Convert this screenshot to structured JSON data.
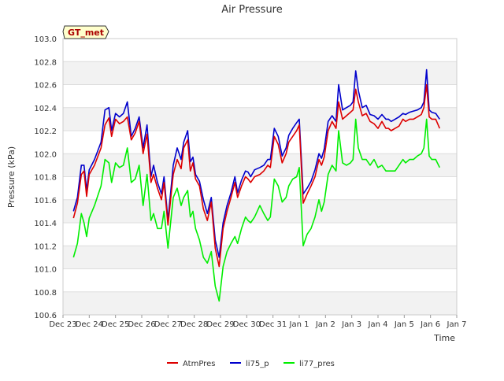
{
  "chart_data": {
    "type": "line",
    "title": "Air Pressure",
    "xlabel": "Time",
    "ylabel": "Pressure (kPa)",
    "site_badge": "GT_met",
    "ylim": [
      100.6,
      103.0
    ],
    "xlim": [
      0,
      15
    ],
    "y_ticks": [
      100.6,
      100.8,
      101.0,
      101.2,
      101.4,
      101.6,
      101.8,
      102.0,
      102.2,
      102.4,
      102.6,
      102.8,
      103.0
    ],
    "y_tick_labels": [
      "100.6",
      "100.8",
      "101.0",
      "101.2",
      "101.4",
      "101.6",
      "101.8",
      "102.0",
      "102.2",
      "102.4",
      "102.6",
      "102.8",
      "103.0"
    ],
    "x_ticks": [
      0,
      1,
      2,
      3,
      4,
      5,
      6,
      7,
      8,
      9,
      10,
      11,
      12,
      13,
      14,
      15
    ],
    "x_tick_labels": [
      "Dec 23",
      "Dec 24",
      "Dec 25",
      "Dec 26",
      "Dec 27",
      "Dec 28",
      "Dec 29",
      "Dec 30",
      "Dec 31",
      "Jan 1",
      "Jan 2",
      "Jan 3",
      "Jan 4",
      "Jan 5",
      "Jan 6",
      "Jan 7"
    ],
    "x_units": "days since Dec 23",
    "series": [
      {
        "name": "AtmPres",
        "color": "#dd0000",
        "x": [
          0.4,
          0.55,
          0.7,
          0.8,
          0.9,
          1.0,
          1.2,
          1.45,
          1.6,
          1.75,
          1.85,
          2.0,
          2.15,
          2.3,
          2.45,
          2.6,
          2.75,
          2.9,
          3.05,
          3.2,
          3.35,
          3.45,
          3.6,
          3.75,
          3.85,
          4.0,
          4.2,
          4.35,
          4.5,
          4.6,
          4.75,
          4.85,
          4.95,
          5.05,
          5.2,
          5.35,
          5.5,
          5.65,
          5.8,
          5.95,
          6.1,
          6.25,
          6.4,
          6.55,
          6.65,
          6.8,
          6.95,
          7.05,
          7.15,
          7.3,
          7.5,
          7.65,
          7.8,
          7.9,
          8.05,
          8.2,
          8.35,
          8.5,
          8.6,
          8.75,
          8.9,
          9.0,
          9.15,
          9.3,
          9.45,
          9.6,
          9.75,
          9.85,
          9.95,
          10.1,
          10.25,
          10.4,
          10.5,
          10.65,
          10.8,
          10.95,
          11.05,
          11.15,
          11.25,
          11.4,
          11.55,
          11.7,
          11.85,
          12.0,
          12.15,
          12.3,
          12.4,
          12.5,
          12.65,
          12.8,
          12.95,
          13.05,
          13.2,
          13.35,
          13.5,
          13.65,
          13.75,
          13.85,
          13.95,
          14.05,
          14.2,
          14.35
        ],
        "values": [
          101.44,
          101.57,
          101.82,
          101.85,
          101.63,
          101.82,
          101.9,
          102.05,
          102.25,
          102.31,
          102.15,
          102.3,
          102.26,
          102.28,
          102.32,
          102.12,
          102.18,
          102.28,
          102.0,
          102.17,
          101.75,
          101.82,
          101.7,
          101.6,
          101.75,
          101.38,
          101.82,
          101.95,
          101.87,
          102.05,
          102.12,
          101.85,
          101.92,
          101.78,
          101.72,
          101.52,
          101.42,
          101.58,
          101.18,
          101.02,
          101.35,
          101.5,
          101.62,
          101.75,
          101.62,
          101.72,
          101.8,
          101.78,
          101.75,
          101.8,
          101.82,
          101.85,
          101.9,
          101.88,
          102.15,
          102.08,
          101.92,
          102.0,
          102.1,
          102.15,
          102.2,
          102.25,
          101.57,
          101.65,
          101.72,
          101.8,
          101.95,
          101.9,
          101.97,
          102.2,
          102.28,
          102.22,
          102.45,
          102.3,
          102.33,
          102.36,
          102.38,
          102.56,
          102.45,
          102.33,
          102.35,
          102.28,
          102.26,
          102.22,
          102.28,
          102.22,
          102.22,
          102.2,
          102.22,
          102.24,
          102.3,
          102.28,
          102.3,
          102.3,
          102.32,
          102.34,
          102.4,
          102.6,
          102.32,
          102.3,
          102.3,
          102.22
        ]
      },
      {
        "name": "li75_p",
        "color": "#0000cc",
        "x": [
          0.4,
          0.55,
          0.7,
          0.8,
          0.9,
          1.0,
          1.2,
          1.45,
          1.6,
          1.75,
          1.85,
          2.0,
          2.15,
          2.3,
          2.45,
          2.6,
          2.75,
          2.9,
          3.05,
          3.2,
          3.35,
          3.45,
          3.6,
          3.75,
          3.85,
          4.0,
          4.2,
          4.35,
          4.5,
          4.6,
          4.75,
          4.85,
          4.95,
          5.05,
          5.2,
          5.35,
          5.5,
          5.65,
          5.8,
          5.95,
          6.1,
          6.25,
          6.4,
          6.55,
          6.65,
          6.8,
          6.95,
          7.05,
          7.15,
          7.3,
          7.5,
          7.65,
          7.8,
          7.9,
          8.05,
          8.2,
          8.35,
          8.5,
          8.6,
          8.75,
          8.9,
          9.0,
          9.15,
          9.3,
          9.45,
          9.6,
          9.75,
          9.85,
          9.95,
          10.1,
          10.25,
          10.4,
          10.5,
          10.65,
          10.8,
          10.95,
          11.05,
          11.15,
          11.25,
          11.4,
          11.55,
          11.7,
          11.85,
          12.0,
          12.15,
          12.3,
          12.4,
          12.5,
          12.65,
          12.8,
          12.95,
          13.05,
          13.2,
          13.35,
          13.5,
          13.65,
          13.75,
          13.85,
          13.95,
          14.05,
          14.2,
          14.35
        ],
        "values": [
          101.5,
          101.62,
          101.9,
          101.9,
          101.68,
          101.86,
          101.95,
          102.1,
          102.38,
          102.4,
          102.2,
          102.35,
          102.32,
          102.35,
          102.45,
          102.15,
          102.22,
          102.32,
          102.05,
          102.25,
          101.8,
          101.9,
          101.75,
          101.65,
          101.8,
          101.42,
          101.9,
          102.05,
          101.95,
          102.1,
          102.2,
          101.93,
          101.97,
          101.82,
          101.76,
          101.6,
          101.48,
          101.62,
          101.25,
          101.1,
          101.4,
          101.55,
          101.66,
          101.8,
          101.66,
          101.77,
          101.85,
          101.84,
          101.8,
          101.86,
          101.88,
          101.9,
          101.95,
          101.95,
          102.22,
          102.15,
          101.98,
          102.05,
          102.16,
          102.22,
          102.27,
          102.3,
          101.65,
          101.7,
          101.76,
          101.86,
          102.0,
          101.96,
          102.04,
          102.28,
          102.33,
          102.28,
          102.6,
          102.38,
          102.4,
          102.42,
          102.45,
          102.72,
          102.55,
          102.4,
          102.42,
          102.34,
          102.33,
          102.3,
          102.34,
          102.3,
          102.3,
          102.28,
          102.3,
          102.32,
          102.35,
          102.34,
          102.36,
          102.37,
          102.38,
          102.4,
          102.45,
          102.73,
          102.38,
          102.36,
          102.35,
          102.3
        ]
      },
      {
        "name": "li77_pres",
        "color": "#00ee00",
        "x": [
          0.4,
          0.55,
          0.7,
          0.8,
          0.9,
          1.0,
          1.2,
          1.45,
          1.6,
          1.75,
          1.85,
          2.0,
          2.15,
          2.3,
          2.45,
          2.6,
          2.75,
          2.9,
          3.05,
          3.2,
          3.35,
          3.45,
          3.6,
          3.75,
          3.85,
          4.0,
          4.2,
          4.35,
          4.5,
          4.6,
          4.75,
          4.85,
          4.95,
          5.05,
          5.2,
          5.35,
          5.5,
          5.65,
          5.8,
          5.95,
          6.1,
          6.25,
          6.4,
          6.55,
          6.65,
          6.8,
          6.95,
          7.05,
          7.15,
          7.3,
          7.5,
          7.65,
          7.8,
          7.9,
          8.05,
          8.2,
          8.35,
          8.5,
          8.6,
          8.75,
          8.9,
          9.0,
          9.15,
          9.3,
          9.45,
          9.6,
          9.75,
          9.85,
          9.95,
          10.1,
          10.25,
          10.4,
          10.5,
          10.65,
          10.8,
          10.95,
          11.05,
          11.15,
          11.25,
          11.4,
          11.55,
          11.7,
          11.85,
          12.0,
          12.15,
          12.3,
          12.4,
          12.5,
          12.65,
          12.8,
          12.95,
          13.05,
          13.2,
          13.35,
          13.5,
          13.65,
          13.75,
          13.85,
          13.95,
          14.05,
          14.2,
          14.35
        ],
        "values": [
          101.1,
          101.22,
          101.48,
          101.4,
          101.28,
          101.44,
          101.55,
          101.72,
          101.95,
          101.92,
          101.75,
          101.92,
          101.88,
          101.9,
          102.05,
          101.75,
          101.78,
          101.9,
          101.55,
          101.82,
          101.42,
          101.48,
          101.35,
          101.35,
          101.5,
          101.18,
          101.62,
          101.7,
          101.55,
          101.62,
          101.68,
          101.45,
          101.5,
          101.35,
          101.25,
          101.1,
          101.05,
          101.15,
          100.85,
          100.72,
          101.02,
          101.15,
          101.22,
          101.28,
          101.22,
          101.35,
          101.45,
          101.42,
          101.4,
          101.45,
          101.55,
          101.48,
          101.42,
          101.45,
          101.78,
          101.72,
          101.58,
          101.62,
          101.72,
          101.78,
          101.8,
          101.88,
          101.2,
          101.3,
          101.35,
          101.45,
          101.6,
          101.5,
          101.58,
          101.82,
          101.9,
          101.85,
          102.2,
          101.92,
          101.9,
          101.92,
          101.95,
          102.3,
          102.05,
          101.95,
          101.95,
          101.9,
          101.95,
          101.88,
          101.9,
          101.85,
          101.85,
          101.85,
          101.85,
          101.9,
          101.95,
          101.92,
          101.95,
          101.95,
          101.98,
          102.0,
          102.05,
          102.3,
          101.98,
          101.95,
          101.95,
          101.88
        ]
      }
    ]
  }
}
